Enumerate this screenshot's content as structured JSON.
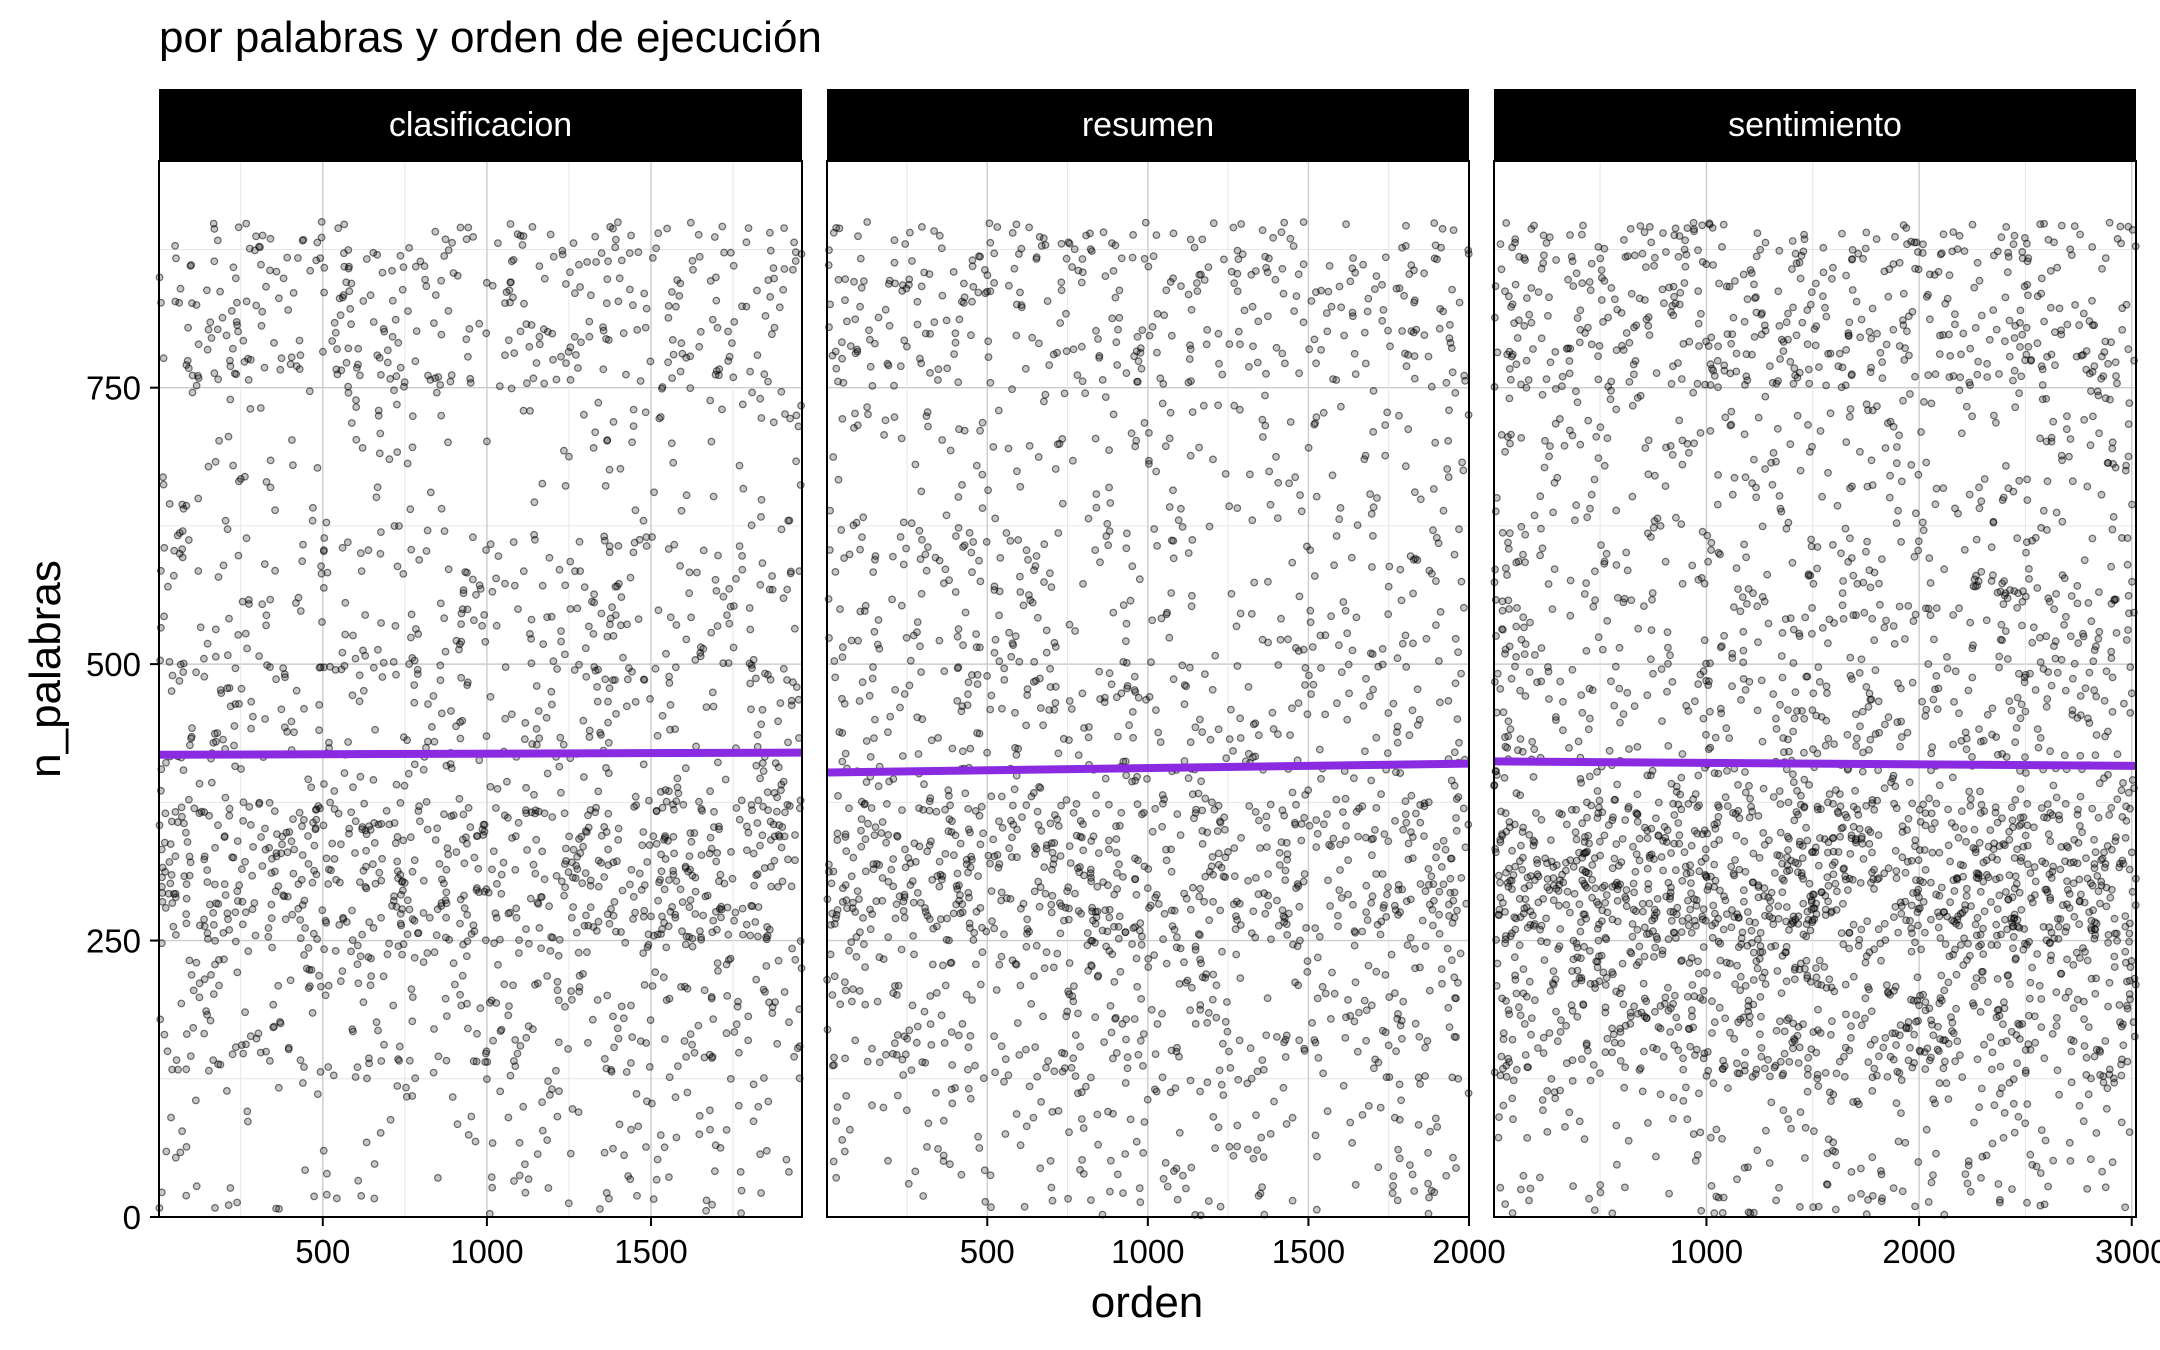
{
  "chart_data": {
    "type": "scatter",
    "title": "por palabras y orden de ejecución",
    "xlabel": "orden",
    "ylabel": "n_palabras",
    "facet_strip_bg": "#000000",
    "facet_strip_text_color": "#ffffff",
    "point_color": "#000000",
    "trend_color": "#8a2be2",
    "grid": true,
    "y_ticks": [
      0,
      250,
      500,
      750
    ],
    "ylim": [
      0,
      955
    ],
    "panels": [
      {
        "name": "clasificacion",
        "xlim": [
          1,
          1960
        ],
        "x_ticks": [
          500,
          1000,
          1500
        ],
        "trend": {
          "x": [
            1,
            1960
          ],
          "y": [
            418,
            420
          ]
        },
        "n_points": 1960,
        "y_distribution": [
          {
            "range": [
              0,
              125
            ],
            "share": 0.06
          },
          {
            "range": [
              125,
              250
            ],
            "share": 0.15
          },
          {
            "range": [
              250,
              375
            ],
            "share": 0.29
          },
          {
            "range": [
              375,
              500
            ],
            "share": 0.13
          },
          {
            "range": [
              500,
              625
            ],
            "share": 0.12
          },
          {
            "range": [
              625,
              750
            ],
            "share": 0.07
          },
          {
            "range": [
              750,
              900
            ],
            "share": 0.18
          }
        ]
      },
      {
        "name": "resumen",
        "xlim": [
          1,
          2000
        ],
        "x_ticks": [
          500,
          1000,
          1500,
          2000
        ],
        "trend": {
          "x": [
            1,
            2000
          ],
          "y": [
            402,
            410
          ]
        },
        "n_points": 2000,
        "y_distribution": [
          {
            "range": [
              0,
              125
            ],
            "share": 0.07
          },
          {
            "range": [
              125,
              250
            ],
            "share": 0.17
          },
          {
            "range": [
              250,
              375
            ],
            "share": 0.27
          },
          {
            "range": [
              375,
              500
            ],
            "share": 0.13
          },
          {
            "range": [
              500,
              625
            ],
            "share": 0.11
          },
          {
            "range": [
              625,
              750
            ],
            "share": 0.07
          },
          {
            "range": [
              750,
              900
            ],
            "share": 0.18
          }
        ]
      },
      {
        "name": "sentimiento",
        "xlim": [
          1,
          3020
        ],
        "x_ticks": [
          1000,
          2000,
          3000
        ],
        "trend": {
          "x": [
            1,
            3020
          ],
          "y": [
            412,
            408
          ]
        },
        "n_points": 3000,
        "y_distribution": [
          {
            "range": [
              0,
              125
            ],
            "share": 0.06
          },
          {
            "range": [
              125,
              250
            ],
            "share": 0.19
          },
          {
            "range": [
              250,
              375
            ],
            "share": 0.3
          },
          {
            "range": [
              375,
              500
            ],
            "share": 0.12
          },
          {
            "range": [
              500,
              625
            ],
            "share": 0.1
          },
          {
            "range": [
              625,
              750
            ],
            "share": 0.07
          },
          {
            "range": [
              750,
              900
            ],
            "share": 0.16
          }
        ]
      }
    ]
  }
}
